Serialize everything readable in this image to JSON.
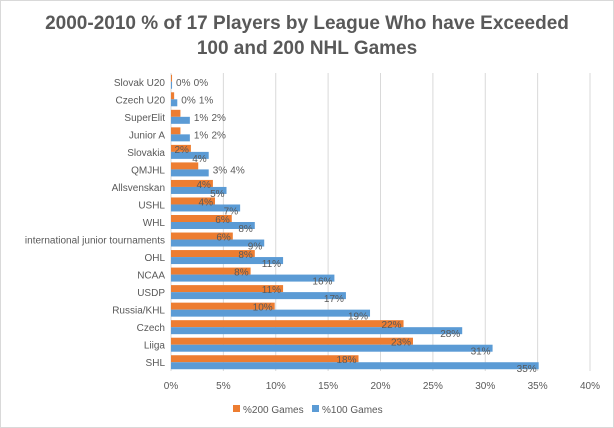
{
  "chart_data": {
    "type": "bar",
    "orientation": "horizontal",
    "title_lines": [
      "2000-2010 % of 17 Players by League Who have Exceeded",
      "100 and 200 NHL Games"
    ],
    "categories": [
      "Slovak U20",
      "Czech U20",
      "SuperElit",
      "Junior A",
      "Slovakia",
      "QMJHL",
      "Allsvenskan",
      "USHL",
      "WHL",
      "international junior tournaments",
      "OHL",
      "NCAA",
      "USDP",
      "Russia/KHL",
      "Czech",
      "Liiga",
      "SHL"
    ],
    "series": [
      {
        "name": "%200 Games",
        "color": "#ED7D31",
        "values": [
          0.1,
          0.3,
          0.9,
          0.9,
          1.9,
          2.6,
          4.0,
          4.2,
          5.8,
          5.9,
          8.0,
          7.6,
          10.7,
          9.9,
          22.2,
          23.1,
          17.9
        ]
      },
      {
        "name": "%100 Games",
        "color": "#5B9BD5",
        "values": [
          0.1,
          0.6,
          1.8,
          1.8,
          3.6,
          3.6,
          5.3,
          6.6,
          8.0,
          8.9,
          10.7,
          15.6,
          16.7,
          19.0,
          27.8,
          30.7,
          35.1
        ]
      }
    ],
    "xlim": [
      0,
      40
    ],
    "xticks": [
      "0%",
      "5%",
      "10%",
      "15%",
      "20%",
      "25%",
      "30%",
      "35%",
      "40%"
    ],
    "grid": true,
    "legend": "bottom",
    "data_labels": true
  }
}
